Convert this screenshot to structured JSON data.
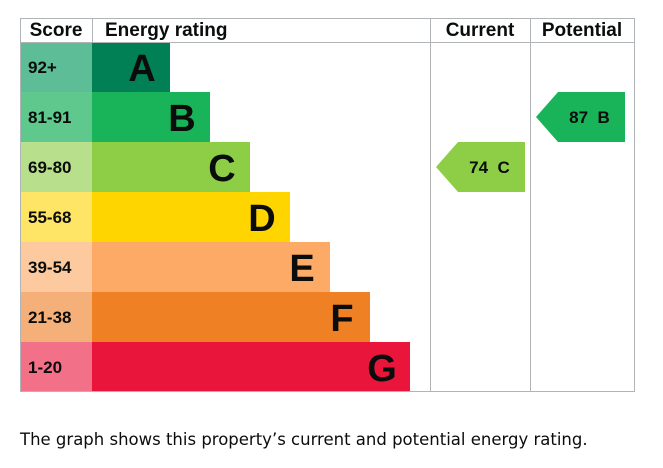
{
  "chart_data": {
    "type": "bar",
    "headers": {
      "score": "Score",
      "rating": "Energy rating",
      "current": "Current",
      "potential": "Potential"
    },
    "bands": [
      {
        "score": "92+",
        "letter": "A",
        "color": "#008054",
        "score_bg": "#5cbd97",
        "text_color": "#0b0c0c"
      },
      {
        "score": "81-91",
        "letter": "B",
        "color": "#19b459",
        "score_bg": "#5fc88d",
        "text_color": "#0b0c0c"
      },
      {
        "score": "69-80",
        "letter": "C",
        "color": "#8dce46",
        "score_bg": "#b8e08c",
        "text_color": "#0b0c0c"
      },
      {
        "score": "55-68",
        "letter": "D",
        "color": "#ffd500",
        "score_bg": "#ffe566",
        "text_color": "#0b0c0c"
      },
      {
        "score": "39-54",
        "letter": "E",
        "color": "#fcaa65",
        "score_bg": "#fdcaa0",
        "text_color": "#0b0c0c"
      },
      {
        "score": "21-38",
        "letter": "F",
        "color": "#ef8023",
        "score_bg": "#f5b07a",
        "text_color": "#0b0c0c"
      },
      {
        "score": "1-20",
        "letter": "G",
        "color": "#e9153b",
        "score_bg": "#f27088",
        "text_color": "#0b0c0c"
      }
    ],
    "current": {
      "value": 74,
      "letter": "C",
      "label": "74  C",
      "band": 2,
      "color": "#8dce46"
    },
    "potential": {
      "value": 87,
      "letter": "B",
      "label": "87  B",
      "band": 1,
      "color": "#19b459"
    }
  },
  "caption": "The graph shows this property’s current and potential energy rating."
}
